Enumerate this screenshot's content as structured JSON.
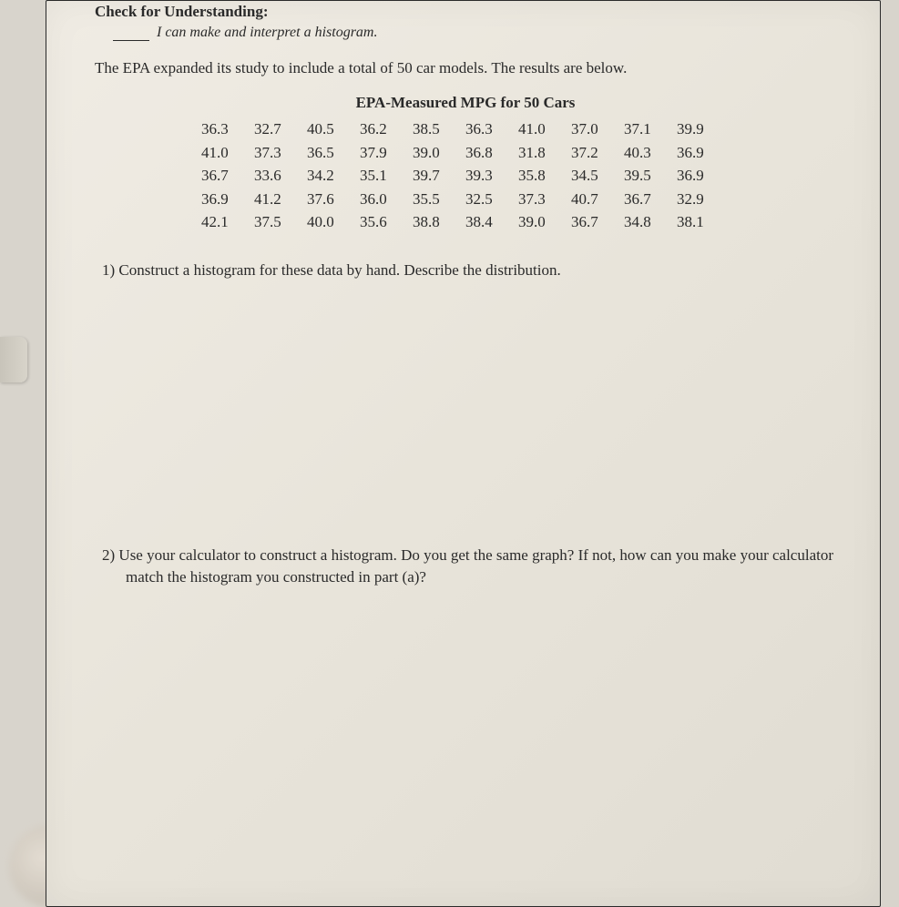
{
  "header": {
    "check_title": "Check for Understanding:",
    "objective": "I can make and interpret a histogram."
  },
  "intro": "The EPA expanded its study to include a total of 50 car models.  The results are below.",
  "table": {
    "title": "EPA-Measured MPG for 50 Cars",
    "rows": [
      [
        "36.3",
        "32.7",
        "40.5",
        "36.2",
        "38.5",
        "36.3",
        "41.0",
        "37.0",
        "37.1",
        "39.9"
      ],
      [
        "41.0",
        "37.3",
        "36.5",
        "37.9",
        "39.0",
        "36.8",
        "31.8",
        "37.2",
        "40.3",
        "36.9"
      ],
      [
        "36.7",
        "33.6",
        "34.2",
        "35.1",
        "39.7",
        "39.3",
        "35.8",
        "34.5",
        "39.5",
        "36.9"
      ],
      [
        "36.9",
        "41.2",
        "37.6",
        "36.0",
        "35.5",
        "32.5",
        "37.3",
        "40.7",
        "36.7",
        "32.9"
      ],
      [
        "42.1",
        "37.5",
        "40.0",
        "35.6",
        "38.8",
        "38.4",
        "39.0",
        "36.7",
        "34.8",
        "38.1"
      ]
    ]
  },
  "questions": {
    "q1": "1)   Construct a histogram for these data by hand.  Describe the distribution.",
    "q2": "2)   Use your calculator to construct a histogram.  Do you get the same graph?  If not, how can you make your calculator match the histogram you constructed in part (a)?"
  },
  "colors": {
    "text": "#2a2a2a",
    "page_bg": "#e8e4da",
    "outer_bg": "#d8d4cc"
  }
}
